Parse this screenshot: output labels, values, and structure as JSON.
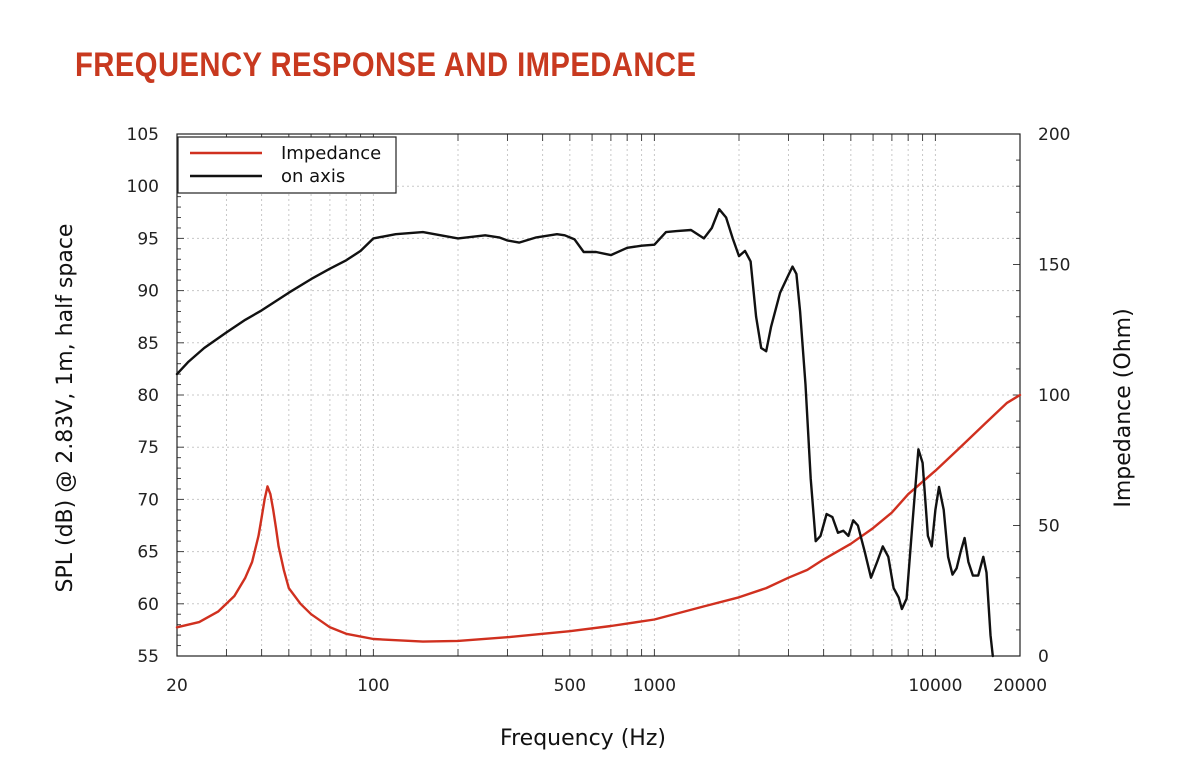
{
  "title": "FREQUENCY RESPONSE AND IMPEDANCE",
  "colors": {
    "title": "#c8391f",
    "impedance": "#d0301f",
    "spl": "#111111",
    "grid": "#c8c8c8"
  },
  "chart_data": {
    "type": "line",
    "title": "FREQUENCY RESPONSE AND IMPEDANCE",
    "xlabel": "Frequency (Hz)",
    "ylabel_left": "SPL (dB) @ 2.83V, 1m, half space",
    "ylabel_right": "Impedance (Ohm)",
    "x_scale": "log",
    "xlim": [
      20,
      20000
    ],
    "ylim_left": [
      55,
      105
    ],
    "ylim_right": [
      0,
      200
    ],
    "x_ticks": [
      {
        "value": 20,
        "label": "20"
      },
      {
        "value": 100,
        "label": "100"
      },
      {
        "value": 500,
        "label": "500"
      },
      {
        "value": 1000,
        "label": "1000"
      },
      {
        "value": 10000,
        "label": "10000"
      },
      {
        "value": 20000,
        "label": "20000"
      }
    ],
    "y_ticks_left": [
      "55",
      "60",
      "65",
      "70",
      "75",
      "80",
      "85",
      "90",
      "95",
      "100",
      "105"
    ],
    "y_ticks_right": [
      "0",
      "50",
      "100",
      "150",
      "200"
    ],
    "grid": true,
    "legend_position": "top-left",
    "series": [
      {
        "name": "Impedance",
        "axis": "right",
        "color": "#d0301f",
        "points": [
          [
            20,
            11
          ],
          [
            24,
            13
          ],
          [
            28,
            17
          ],
          [
            32,
            23
          ],
          [
            35,
            30
          ],
          [
            37,
            36
          ],
          [
            39,
            46
          ],
          [
            40,
            53
          ],
          [
            41,
            60
          ],
          [
            42,
            65
          ],
          [
            43,
            62
          ],
          [
            44,
            56
          ],
          [
            45,
            49
          ],
          [
            46,
            42
          ],
          [
            48,
            33
          ],
          [
            50,
            26
          ],
          [
            55,
            20
          ],
          [
            60,
            16
          ],
          [
            70,
            11
          ],
          [
            80,
            8.5
          ],
          [
            100,
            6.5
          ],
          [
            150,
            5.5
          ],
          [
            200,
            5.8
          ],
          [
            300,
            7.2
          ],
          [
            400,
            8.5
          ],
          [
            500,
            9.5
          ],
          [
            700,
            11.5
          ],
          [
            1000,
            14
          ],
          [
            1500,
            19
          ],
          [
            2000,
            22.5
          ],
          [
            2500,
            26
          ],
          [
            3000,
            30
          ],
          [
            3500,
            33
          ],
          [
            4000,
            37
          ],
          [
            5000,
            43
          ],
          [
            6000,
            49
          ],
          [
            7000,
            55
          ],
          [
            8000,
            62
          ],
          [
            10000,
            71
          ],
          [
            12000,
            79
          ],
          [
            15000,
            89
          ],
          [
            18000,
            97
          ],
          [
            20000,
            100
          ]
        ]
      },
      {
        "name": "on axis",
        "axis": "left",
        "color": "#111111",
        "points": [
          [
            20,
            82
          ],
          [
            22,
            83.2
          ],
          [
            25,
            84.5
          ],
          [
            30,
            86
          ],
          [
            35,
            87.2
          ],
          [
            40,
            88.1
          ],
          [
            50,
            89.8
          ],
          [
            60,
            91.1
          ],
          [
            70,
            92.1
          ],
          [
            80,
            92.9
          ],
          [
            90,
            93.8
          ],
          [
            100,
            95
          ],
          [
            120,
            95.4
          ],
          [
            150,
            95.6
          ],
          [
            200,
            95
          ],
          [
            250,
            95.3
          ],
          [
            280,
            95.1
          ],
          [
            300,
            94.8
          ],
          [
            330,
            94.6
          ],
          [
            380,
            95.1
          ],
          [
            450,
            95.4
          ],
          [
            480,
            95.3
          ],
          [
            520,
            94.9
          ],
          [
            560,
            93.7
          ],
          [
            620,
            93.7
          ],
          [
            700,
            93.4
          ],
          [
            800,
            94.1
          ],
          [
            900,
            94.3
          ],
          [
            1000,
            94.4
          ],
          [
            1100,
            95.6
          ],
          [
            1200,
            95.7
          ],
          [
            1350,
            95.8
          ],
          [
            1500,
            95
          ],
          [
            1600,
            96
          ],
          [
            1700,
            97.8
          ],
          [
            1800,
            97
          ],
          [
            1900,
            95
          ],
          [
            2000,
            93.3
          ],
          [
            2100,
            93.8
          ],
          [
            2200,
            92.8
          ],
          [
            2300,
            87.5
          ],
          [
            2400,
            84.5
          ],
          [
            2500,
            84.2
          ],
          [
            2600,
            86.5
          ],
          [
            2800,
            89.8
          ],
          [
            3000,
            91.5
          ],
          [
            3100,
            92.3
          ],
          [
            3200,
            91.6
          ],
          [
            3300,
            88
          ],
          [
            3450,
            81
          ],
          [
            3600,
            72
          ],
          [
            3750,
            66
          ],
          [
            3900,
            66.5
          ],
          [
            4100,
            68.6
          ],
          [
            4300,
            68.3
          ],
          [
            4500,
            66.8
          ],
          [
            4700,
            67
          ],
          [
            4900,
            66.5
          ],
          [
            5100,
            68
          ],
          [
            5300,
            67.5
          ],
          [
            5600,
            65
          ],
          [
            5900,
            62.5
          ],
          [
            6200,
            64
          ],
          [
            6500,
            65.5
          ],
          [
            6800,
            64.5
          ],
          [
            7100,
            61.5
          ],
          [
            7400,
            60.6
          ],
          [
            7600,
            59.5
          ],
          [
            7900,
            60.5
          ],
          [
            8300,
            68
          ],
          [
            8700,
            74.8
          ],
          [
            9000,
            73.5
          ],
          [
            9400,
            66.5
          ],
          [
            9700,
            65.5
          ],
          [
            10000,
            69
          ],
          [
            10300,
            71.2
          ],
          [
            10700,
            69
          ],
          [
            11100,
            64.5
          ],
          [
            11500,
            62.8
          ],
          [
            11900,
            63.4
          ],
          [
            12300,
            65
          ],
          [
            12700,
            66.3
          ],
          [
            13100,
            64
          ],
          [
            13600,
            62.7
          ],
          [
            14200,
            62.7
          ],
          [
            14800,
            64.5
          ],
          [
            15200,
            63
          ],
          [
            15700,
            57
          ],
          [
            16000,
            55
          ]
        ]
      }
    ]
  }
}
